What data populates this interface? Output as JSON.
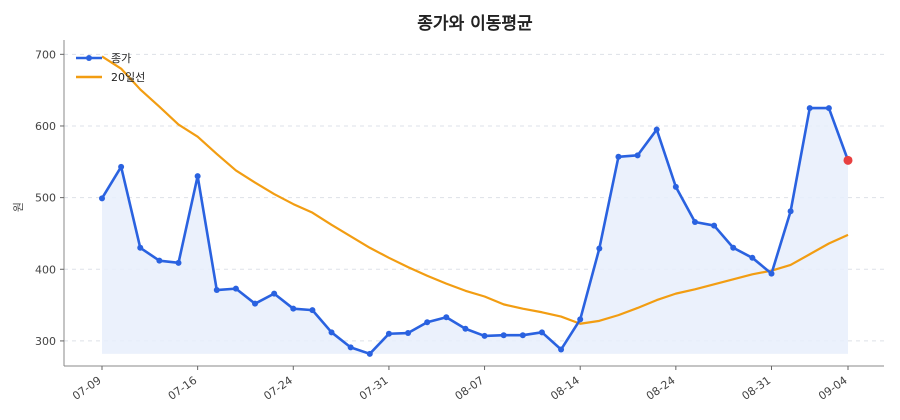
{
  "chart_data": {
    "type": "line",
    "title": "종가와 이동평균",
    "xlabel": "",
    "ylabel": "원",
    "ylim": [
      265,
      720
    ],
    "yticks": [
      300,
      400,
      500,
      600,
      700
    ],
    "xticks": [
      {
        "label": "07-09",
        "index": 0
      },
      {
        "label": "07-16",
        "index": 5
      },
      {
        "label": "07-24",
        "index": 10
      },
      {
        "label": "07-31",
        "index": 15
      },
      {
        "label": "08-07",
        "index": 20
      },
      {
        "label": "08-14",
        "index": 25
      },
      {
        "label": "08-24",
        "index": 30
      },
      {
        "label": "08-31",
        "index": 35
      },
      {
        "label": "09-04",
        "index": 39
      }
    ],
    "grid": "horizontal-dashed",
    "legend_position": "top-left",
    "series": [
      {
        "name": "종가",
        "color": "#2a62e0",
        "markers": true,
        "fill_color": "#e8eefb",
        "last_point_color": "#e84040",
        "values": [
          499,
          543,
          430,
          412,
          409,
          530,
          371,
          373,
          352,
          366,
          345,
          343,
          312,
          291,
          282,
          310,
          311,
          326,
          333,
          317,
          307,
          308,
          308,
          312,
          288,
          330,
          429,
          557,
          559,
          595,
          515,
          466,
          461,
          430,
          416,
          394,
          481,
          625,
          625,
          552
        ]
      },
      {
        "name": "20일선",
        "color": "#f29d12",
        "markers": false,
        "values": [
          697,
          680,
          651,
          627,
          602,
          585,
          561,
          538,
          521,
          505,
          491,
          479,
          462,
          446,
          430,
          416,
          403,
          391,
          380,
          370,
          362,
          351,
          345,
          340,
          334,
          324,
          328,
          336,
          346,
          357,
          366,
          372,
          379,
          386,
          393,
          398,
          406,
          421,
          436,
          448
        ]
      }
    ]
  }
}
